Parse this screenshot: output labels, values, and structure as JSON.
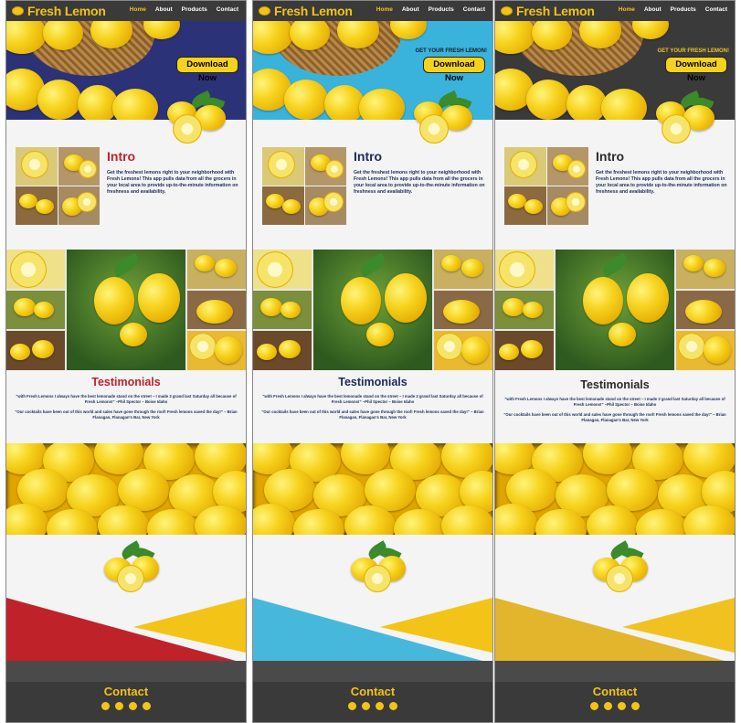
{
  "brand": "Fresh Lemon",
  "menu": [
    "Home",
    "About",
    "Products",
    "Contact"
  ],
  "cta": {
    "headline": "GET YOUR FRESH LEMON!",
    "button": "Download Now"
  },
  "intro": {
    "title": "Intro",
    "text": "Get the freshest lemons right to your neighborhood with Fresh Lemons! This app pulls data from all the grocers in your local area to provide up-to-the-minute information on freshness and availability."
  },
  "testimonials": {
    "title": "Testimonials",
    "quote1": "\"with Fresh Lemons I always have the best lemonade stand on the street – I made 2 grand last Saturday all because of Fresh Lemons!\" –Phil Spector – Boise Idaho",
    "quote2": "\"Our cocktails have been out of this world and sales have gone through the roof! Fresh lemons saved the day!\" – Brian Flanagan, Flanagan's Bar, New York"
  },
  "footer": {
    "contact": "Contact"
  },
  "variants": [
    {
      "accent": "#c0222a",
      "hero_bg": "#2c3278",
      "wedge": "#c0222a",
      "yellow": "#f4c317"
    },
    {
      "accent": "#1c2a5b",
      "hero_bg": "#3ab3dc",
      "wedge": "#46b8dc",
      "yellow": "#f4c317"
    },
    {
      "accent": "#2a2a2a",
      "hero_bg": "#3a3a3a",
      "wedge": "#e3b52c",
      "yellow": "#f1c21f"
    }
  ]
}
